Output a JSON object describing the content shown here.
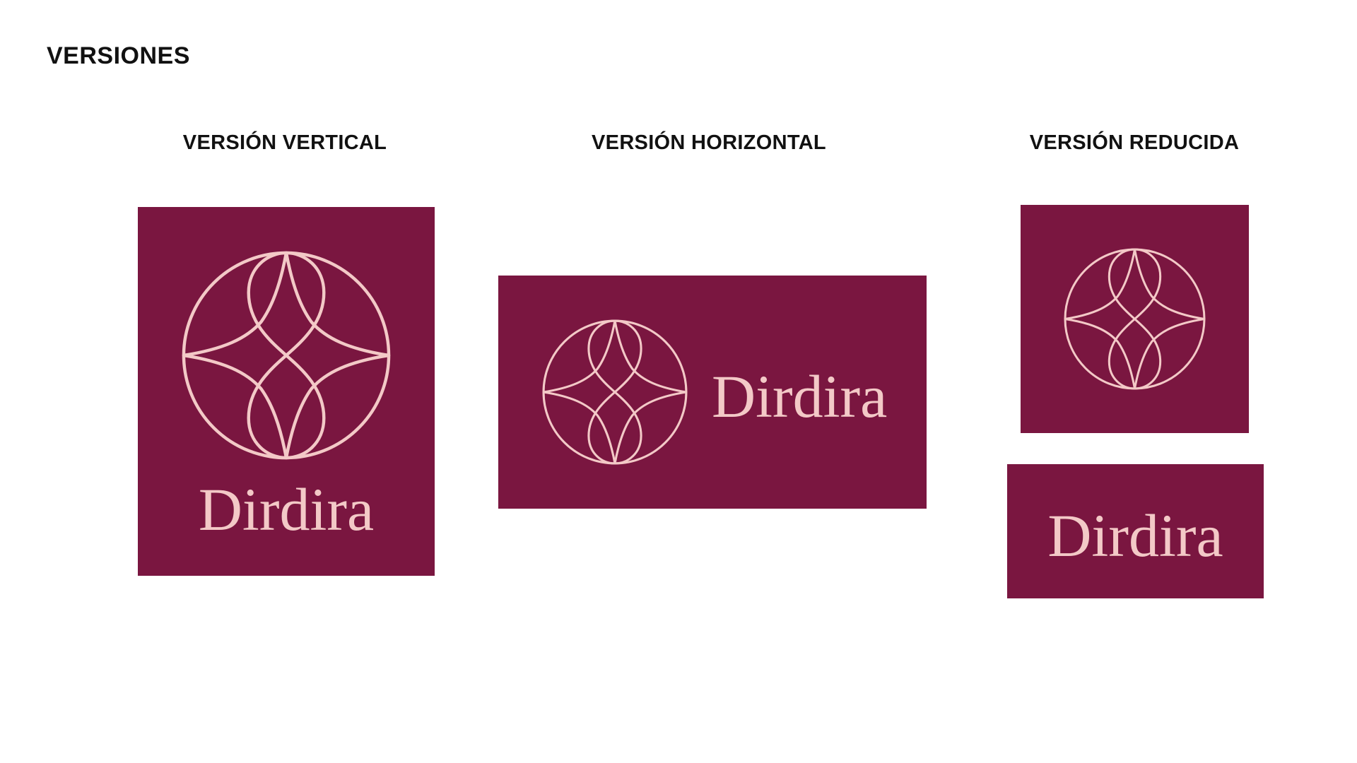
{
  "page": {
    "title": "VERSIONES"
  },
  "colors": {
    "brand": "#7a1640",
    "accent": "#f3c9c7",
    "text": "#111111"
  },
  "versions": [
    {
      "title": "VERSIÓN VERTICAL",
      "wordmark": "Dirdira"
    },
    {
      "title": "VERSIÓN HORIZONTAL",
      "wordmark": "Dirdira"
    },
    {
      "title": "VERSIÓN REDUCIDA",
      "wordmark": "Dirdira"
    }
  ],
  "icons": {
    "emblem": "circle-star-emblem-icon"
  }
}
